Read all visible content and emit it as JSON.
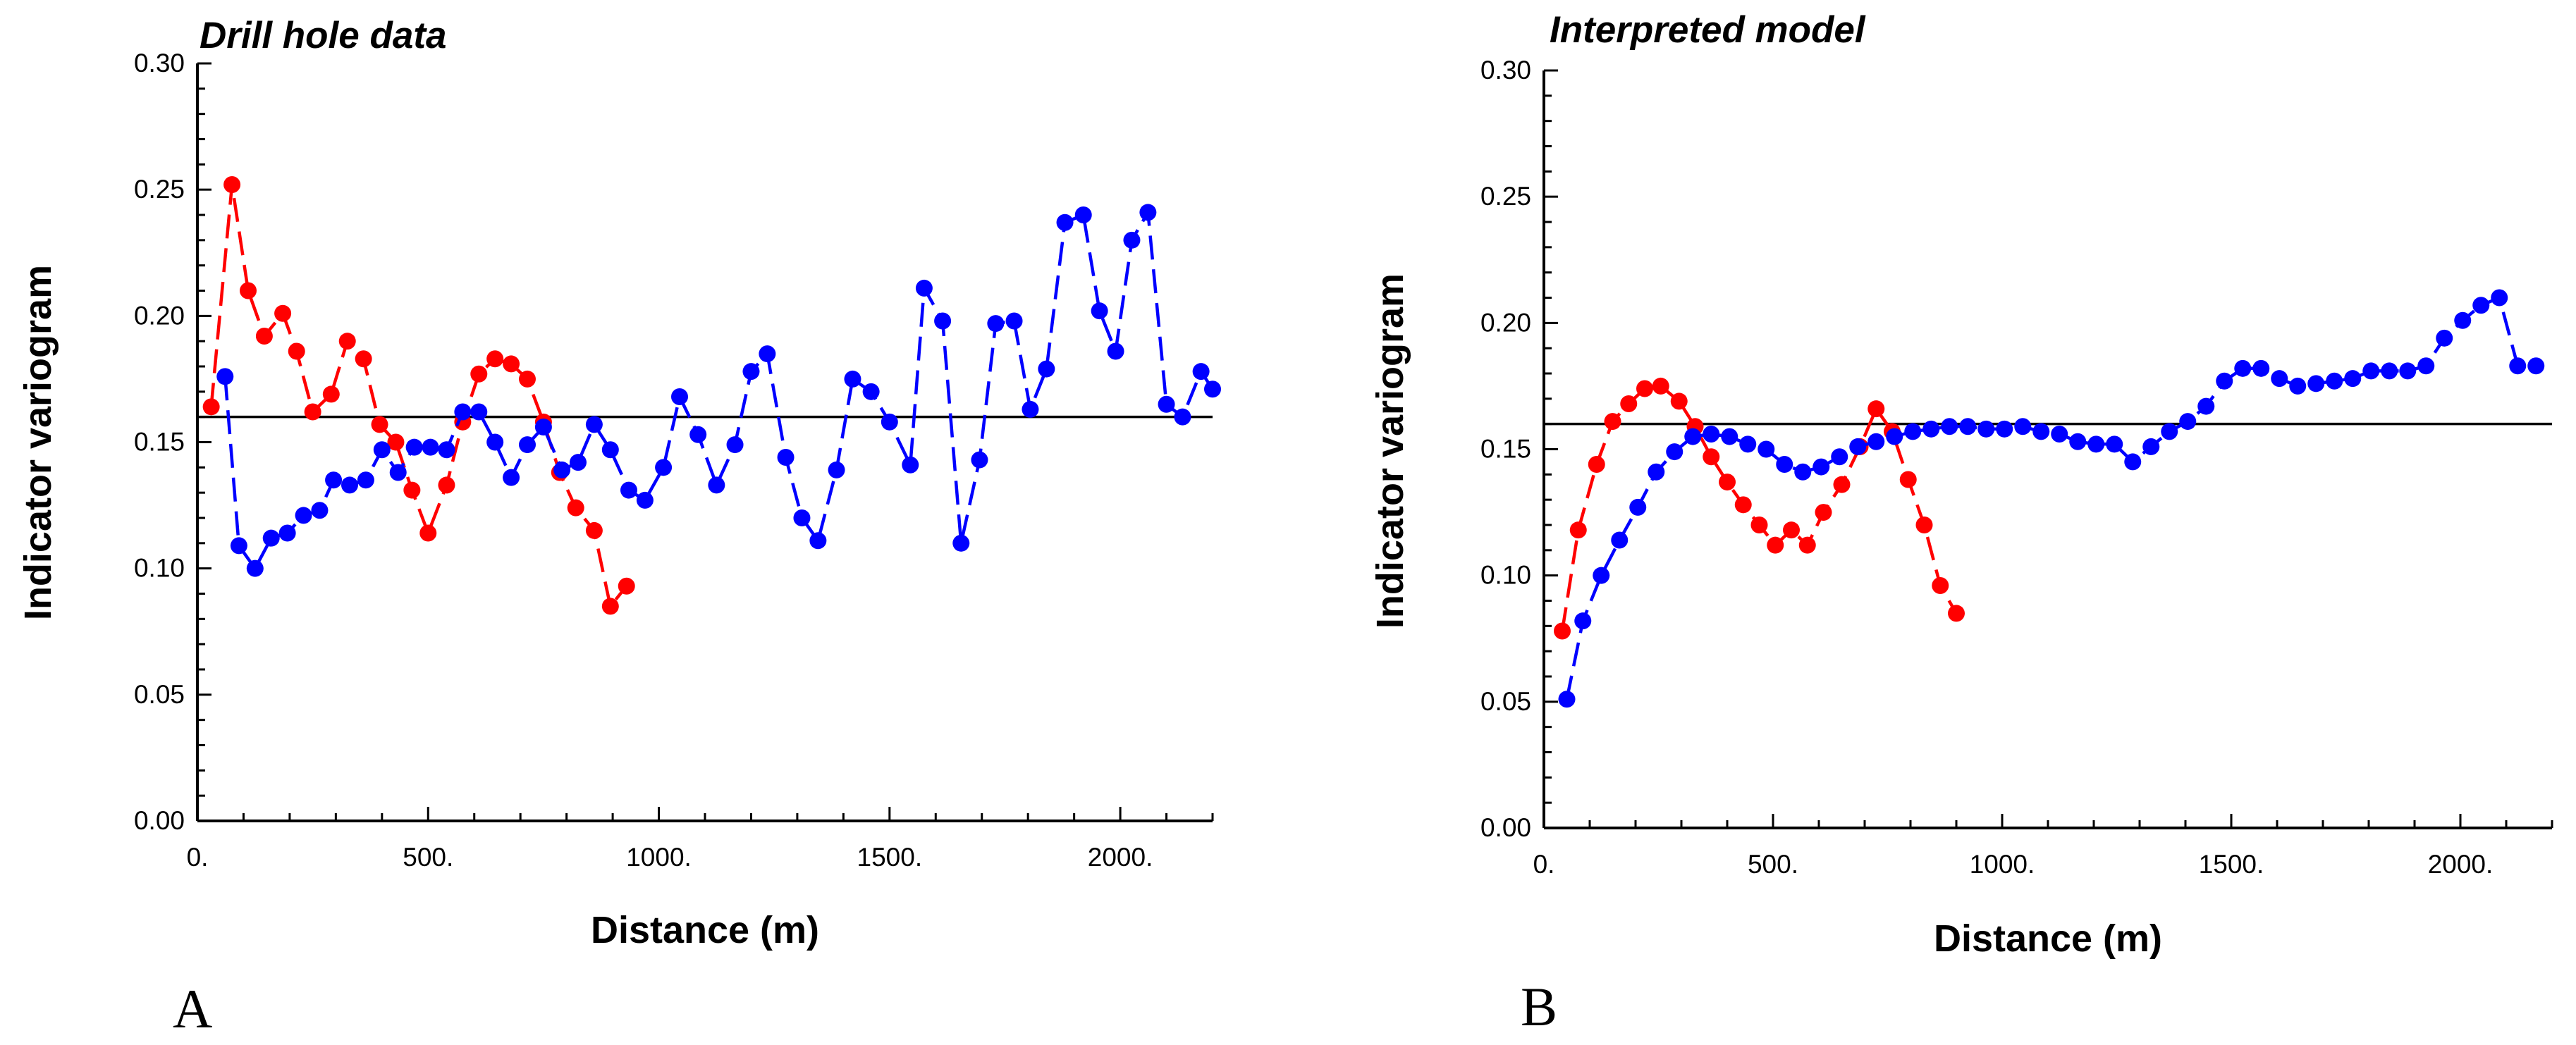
{
  "chart_data": [
    {
      "type": "line",
      "panel_label": "A",
      "title": "Drill hole data",
      "xlabel": "Distance (m)",
      "ylabel": "Indicator variogram",
      "xlim": [
        0,
        2200
      ],
      "ylim": [
        0,
        0.3
      ],
      "xticks": [
        0,
        500,
        1000,
        1500,
        2000
      ],
      "xtick_labels": [
        "0.",
        "500.",
        "1000.",
        "1500.",
        "2000."
      ],
      "yticks": [
        0.0,
        0.05,
        0.1,
        0.15,
        0.2,
        0.25,
        0.3
      ],
      "ytick_labels": [
        "0.00",
        "0.05",
        "0.10",
        "0.15",
        "0.20",
        "0.25",
        "0.30"
      ],
      "sill": 0.16,
      "grid": false,
      "legend": "none",
      "series": [
        {
          "name": "red",
          "color": "#ff0000",
          "x": [
            30,
            75,
            110,
            145,
            185,
            215,
            250,
            290,
            325,
            360,
            395,
            430,
            465,
            500,
            540,
            575,
            610,
            645,
            680,
            715,
            750,
            785,
            820,
            860,
            895,
            930
          ],
          "y": [
            0.164,
            0.252,
            0.21,
            0.192,
            0.201,
            0.186,
            0.162,
            0.169,
            0.19,
            0.183,
            0.157,
            0.15,
            0.131,
            0.114,
            0.133,
            0.158,
            0.177,
            0.183,
            0.181,
            0.175,
            0.158,
            0.138,
            0.124,
            0.115,
            0.085,
            0.093
          ]
        },
        {
          "name": "blue",
          "color": "#0000ff",
          "x": [
            60,
            90,
            125,
            160,
            195,
            230,
            265,
            295,
            330,
            365,
            400,
            435,
            470,
            505,
            540,
            575,
            610,
            645,
            680,
            715,
            750,
            790,
            825,
            860,
            895,
            935,
            970,
            1010,
            1045,
            1085,
            1125,
            1165,
            1200,
            1235,
            1275,
            1310,
            1345,
            1385,
            1420,
            1460,
            1500,
            1545,
            1575,
            1615,
            1655,
            1695,
            1730,
            1770,
            1805,
            1840,
            1880,
            1920,
            1955,
            1990,
            2025,
            2060,
            2100,
            2135,
            2175,
            2200
          ],
          "y": [
            0.176,
            0.109,
            0.1,
            0.112,
            0.114,
            0.121,
            0.123,
            0.135,
            0.133,
            0.135,
            0.147,
            0.138,
            0.148,
            0.148,
            0.147,
            0.162,
            0.162,
            0.15,
            0.136,
            0.149,
            0.156,
            0.139,
            0.142,
            0.157,
            0.147,
            0.131,
            0.127,
            0.14,
            0.168,
            0.153,
            0.133,
            0.149,
            0.178,
            0.185,
            0.144,
            0.12,
            0.111,
            0.139,
            0.175,
            0.17,
            0.158,
            0.141,
            0.211,
            0.198,
            0.11,
            0.143,
            0.197,
            0.198,
            0.163,
            0.179,
            0.237,
            0.24,
            0.202,
            0.186,
            0.23,
            0.241,
            0.165,
            0.16,
            0.178,
            0.171
          ]
        }
      ]
    },
    {
      "type": "line",
      "panel_label": "B",
      "title": "Interpreted model",
      "xlabel": "Distance (m)",
      "ylabel": "Indicator variogram",
      "xlim": [
        0,
        2200
      ],
      "ylim": [
        0,
        0.3
      ],
      "xticks": [
        0,
        500,
        1000,
        1500,
        2000
      ],
      "xtick_labels": [
        "0.",
        "500.",
        "1000.",
        "1500.",
        "2000."
      ],
      "yticks": [
        0.0,
        0.05,
        0.1,
        0.15,
        0.2,
        0.25,
        0.3
      ],
      "ytick_labels": [
        "0.00",
        "0.05",
        "0.10",
        "0.15",
        "0.20",
        "0.25",
        "0.30"
      ],
      "sill": 0.16,
      "grid": false,
      "legend": "none",
      "series": [
        {
          "name": "red",
          "color": "#ff0000",
          "x": [
            40,
            75,
            115,
            150,
            185,
            220,
            255,
            295,
            330,
            365,
            400,
            435,
            470,
            505,
            540,
            575,
            610,
            650,
            690,
            725,
            760,
            795,
            830,
            865,
            900
          ],
          "y": [
            0.078,
            0.118,
            0.144,
            0.161,
            0.168,
            0.174,
            0.175,
            0.169,
            0.159,
            0.147,
            0.137,
            0.128,
            0.12,
            0.112,
            0.118,
            0.112,
            0.125,
            0.136,
            0.151,
            0.166,
            0.157,
            0.138,
            0.12,
            0.096,
            0.085
          ]
        },
        {
          "name": "blue",
          "color": "#0000ff",
          "x": [
            50,
            85,
            125,
            165,
            205,
            245,
            285,
            325,
            365,
            405,
            445,
            485,
            525,
            565,
            605,
            645,
            685,
            725,
            765,
            805,
            845,
            885,
            925,
            965,
            1005,
            1045,
            1085,
            1125,
            1165,
            1205,
            1245,
            1285,
            1325,
            1365,
            1405,
            1445,
            1485,
            1525,
            1565,
            1605,
            1645,
            1685,
            1725,
            1765,
            1805,
            1845,
            1885,
            1925,
            1965,
            2005,
            2045,
            2085,
            2125,
            2165
          ],
          "y": [
            0.051,
            0.082,
            0.1,
            0.114,
            0.127,
            0.141,
            0.149,
            0.155,
            0.156,
            0.155,
            0.152,
            0.15,
            0.144,
            0.141,
            0.143,
            0.147,
            0.151,
            0.153,
            0.155,
            0.157,
            0.158,
            0.159,
            0.159,
            0.158,
            0.158,
            0.159,
            0.157,
            0.156,
            0.153,
            0.152,
            0.152,
            0.145,
            0.151,
            0.157,
            0.161,
            0.167,
            0.177,
            0.182,
            0.182,
            0.178,
            0.175,
            0.176,
            0.177,
            0.178,
            0.181,
            0.181,
            0.181,
            0.183,
            0.194,
            0.201,
            0.207,
            0.21,
            0.183,
            0.183
          ]
        }
      ]
    }
  ]
}
